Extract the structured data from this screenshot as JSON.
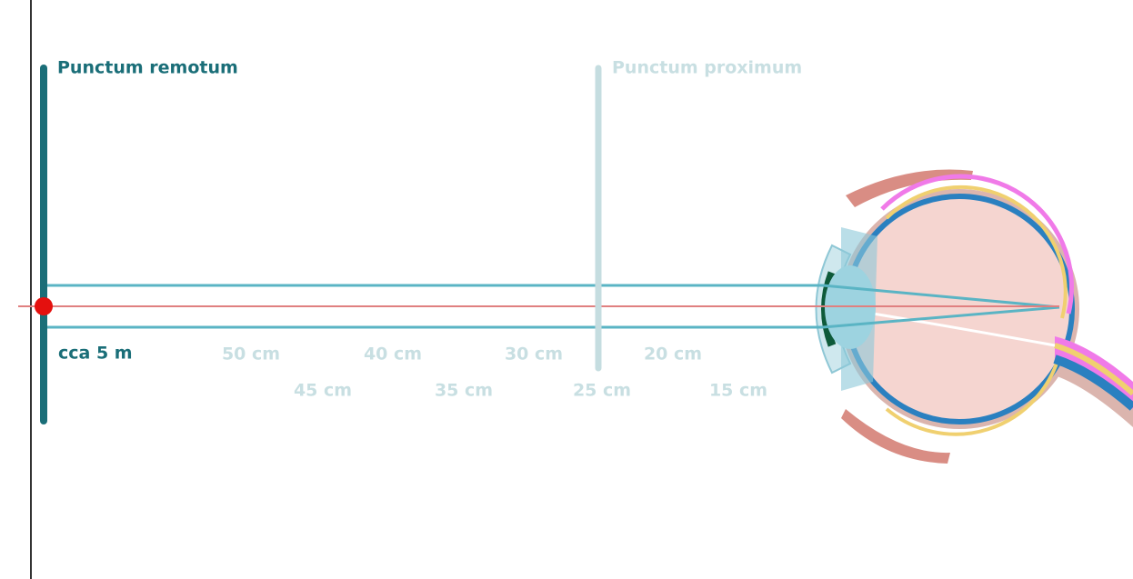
{
  "labels": {
    "remotum": "Punctum remotum",
    "proximum": "Punctum proximum",
    "distance": "cca 5 m"
  },
  "scale": [
    "50 cm",
    "45 cm",
    "40 cm",
    "35 cm",
    "30 cm",
    "25 cm",
    "20 cm",
    "15 cm"
  ]
}
